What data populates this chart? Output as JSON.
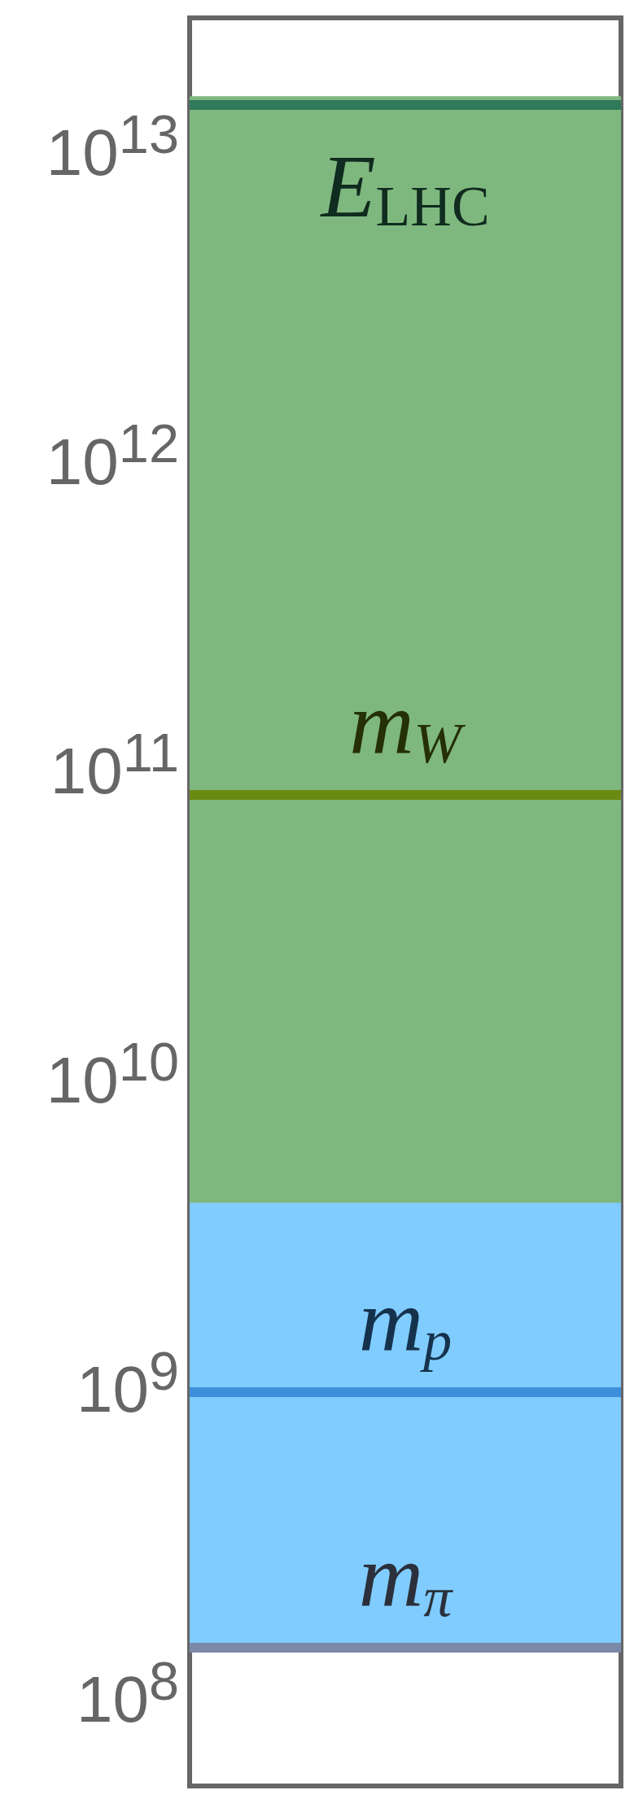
{
  "chart_data": {
    "type": "bar",
    "log": "y",
    "ylim": [
      50000000.0,
      26000000000000.0
    ],
    "yticks": [
      {
        "value": 100000000.0,
        "label": "10$^{8}$"
      },
      {
        "value": 1000000000.0,
        "label": "10$^{9}$"
      },
      {
        "value": 10000000000.0,
        "label": "10$^{10}$"
      },
      {
        "value": 100000000000.0,
        "label": "10$^{11}$"
      },
      {
        "value": 1000000000000.0,
        "label": "10$^{12}$"
      },
      {
        "value": 10000000000000.0,
        "label": "10$^{13}$"
      }
    ],
    "categories": [
      null
    ],
    "series": [
      {
        "color": "#80ccff",
        "base": [
          140000000.0
        ],
        "values": [
          3700000000.0
        ]
      },
      {
        "color": "#7fb87f",
        "base": [
          3800000000.0
        ],
        "values": [
          14500000000000.0
        ]
      }
    ],
    "ref_lines": [
      {
        "axis": "y",
        "value": 140000000.0,
        "label": "m$_{π}$",
        "color": "#7a8aa8"
      },
      {
        "axis": "y",
        "value": 940000000.0,
        "label": "m$_{p}$",
        "color": "#3d8fdc"
      },
      {
        "axis": "y",
        "value": 80000000000.0,
        "label": "m$_{W}$",
        "color": "#6b8a12"
      },
      {
        "axis": "y",
        "value": 13600000000000.0,
        "label": "E$_{LHC}$",
        "color": "#2e7a5a"
      }
    ]
  }
}
